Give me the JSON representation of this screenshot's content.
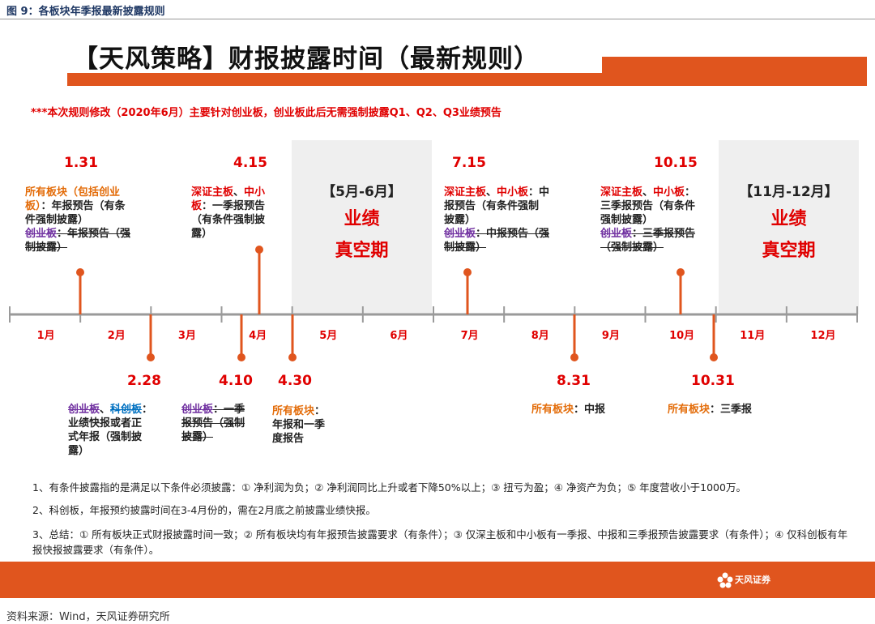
{
  "caption": "图 9：各板块年季报最新披露规则",
  "title": "【天风策略】财报披露时间（最新规则）",
  "notice": "***本次规则修改（2020年6月）主要针对创业板，创业板此后无需强制披露Q1、Q2、Q3业绩预告",
  "months": [
    "1月",
    "2月",
    "3月",
    "4月",
    "5月",
    "6月",
    "7月",
    "8月",
    "9月",
    "10月",
    "11月",
    "12月"
  ],
  "vacuum_periods": [
    {
      "range": "【5月-6月】",
      "text1": "业绩",
      "text2": "真空期"
    },
    {
      "range": "【11月-12月】",
      "text1": "业绩",
      "text2": "真空期"
    }
  ],
  "events_top": [
    {
      "date": "1.31",
      "lines": [
        [
          {
            "t": "所有板块（包括创业",
            "c": "o"
          }
        ],
        [
          {
            "t": "板）",
            "c": "o"
          },
          {
            "t": "：年报预告（有条",
            "c": ""
          }
        ],
        [
          {
            "t": "件强制披露）",
            "c": ""
          }
        ],
        [
          {
            "t": "创业板",
            "c": "p"
          },
          {
            "t": "：年报预告（强",
            "c": "s"
          }
        ],
        [
          {
            "t": "制披露）",
            "c": "s"
          }
        ]
      ]
    },
    {
      "date": "4.15",
      "lines": [
        [
          {
            "t": "深证主板",
            "c": "r"
          },
          {
            "t": "、",
            "c": ""
          },
          {
            "t": "中小",
            "c": "r"
          }
        ],
        [
          {
            "t": "板",
            "c": "r"
          },
          {
            "t": "：一季报预告",
            "c": ""
          }
        ],
        [
          {
            "t": "（有条件强制披",
            "c": ""
          }
        ],
        [
          {
            "t": "露）",
            "c": ""
          }
        ]
      ]
    },
    {
      "date": "7.15",
      "lines": [
        [
          {
            "t": "深证主板",
            "c": "r"
          },
          {
            "t": "、",
            "c": ""
          },
          {
            "t": "中小板",
            "c": "r"
          },
          {
            "t": "：中",
            "c": ""
          }
        ],
        [
          {
            "t": "报预告（有条件强制",
            "c": ""
          }
        ],
        [
          {
            "t": "披露）",
            "c": ""
          }
        ],
        [
          {
            "t": "创业板",
            "c": "p"
          },
          {
            "t": "：中报预告（强",
            "c": "s"
          }
        ],
        [
          {
            "t": "制披露）",
            "c": "s"
          }
        ]
      ]
    },
    {
      "date": "10.15",
      "lines": [
        [
          {
            "t": "深证主板",
            "c": "r"
          },
          {
            "t": "、",
            "c": ""
          },
          {
            "t": "中小板",
            "c": "r"
          },
          {
            "t": "：",
            "c": ""
          }
        ],
        [
          {
            "t": "三季报预告（有条件",
            "c": ""
          }
        ],
        [
          {
            "t": "强制披露）",
            "c": ""
          }
        ],
        [
          {
            "t": "创业板",
            "c": "p"
          },
          {
            "t": "：三季报预告",
            "c": "s"
          }
        ],
        [
          {
            "t": "（强制披露）",
            "c": "s"
          }
        ]
      ]
    }
  ],
  "events_bottom": [
    {
      "date": "2.28",
      "lines": [
        [
          {
            "t": "创业板",
            "c": "p"
          },
          {
            "t": "、",
            "c": ""
          },
          {
            "t": "科创板",
            "c": "b"
          },
          {
            "t": "：",
            "c": ""
          }
        ],
        [
          {
            "t": "业绩快报或者正",
            "c": ""
          }
        ],
        [
          {
            "t": "式年报（强制披",
            "c": ""
          }
        ],
        [
          {
            "t": "露）",
            "c": ""
          }
        ]
      ]
    },
    {
      "date": "4.10",
      "lines": [
        [
          {
            "t": "创业板",
            "c": "p"
          },
          {
            "t": "：一季",
            "c": "s"
          }
        ],
        [
          {
            "t": "报预告（强制",
            "c": "s"
          }
        ],
        [
          {
            "t": "披露）",
            "c": "s"
          }
        ]
      ]
    },
    {
      "date": "4.30",
      "lines": [
        [
          {
            "t": "所有板块",
            "c": "o"
          },
          {
            "t": "：",
            "c": ""
          }
        ],
        [
          {
            "t": "年报和一季",
            "c": ""
          }
        ],
        [
          {
            "t": "度报告",
            "c": ""
          }
        ]
      ]
    },
    {
      "date": "8.31",
      "lines": [
        [
          {
            "t": "所有板块",
            "c": "o"
          },
          {
            "t": "：中报",
            "c": ""
          }
        ]
      ]
    },
    {
      "date": "10.31",
      "lines": [
        [
          {
            "t": "所有板块",
            "c": "o"
          },
          {
            "t": "：三季报",
            "c": ""
          }
        ]
      ]
    }
  ],
  "notes": [
    "1、有条件披露指的是满足以下条件必须披露：① 净利润为负；② 净利润同比上升或者下降50%以上；③ 扭亏为盈；④ 净资产为负；⑤ 年度营收小于1000万。",
    "2、科创板，年报预约披露时间在3-4月份的，需在2月底之前披露业绩快报。",
    "3、总结：① 所有板块正式财报披露时间一致；② 所有板块均有年报预告披露要求（有条件）；③ 仅深主板和中小板有一季报、中报和三季报预告披露要求（有条件）；④ 仅科创板有年报快报披露要求（有条件）。"
  ],
  "logo": {
    "name": "天风证券"
  },
  "source": "资料来源：Wind，天风证券研究所",
  "colors": {
    "accent": "#e0551e",
    "red": "#e00000",
    "orange": "#e36c09",
    "purple": "#7030a0",
    "blue": "#0070c0"
  }
}
